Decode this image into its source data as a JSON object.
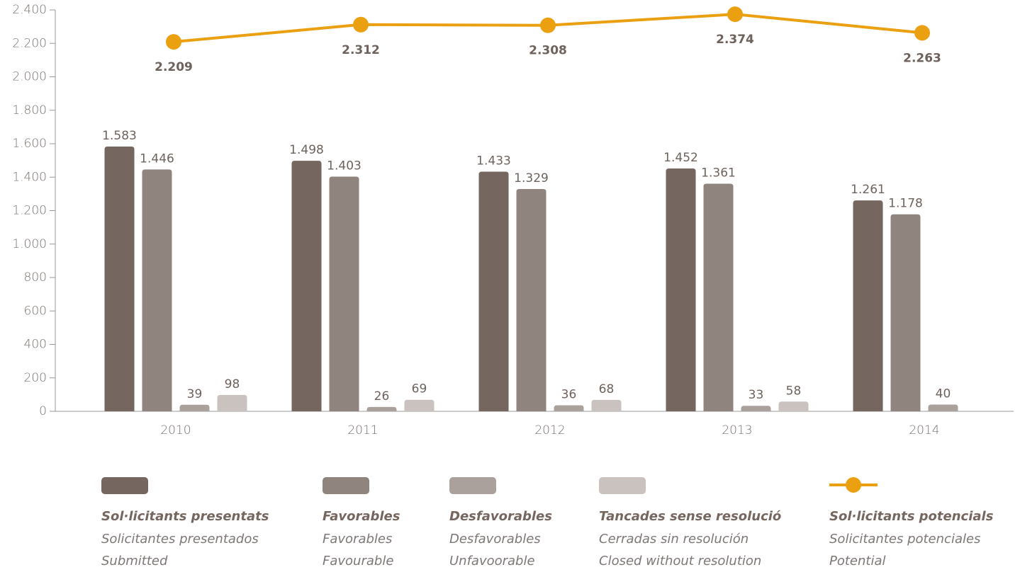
{
  "chart_data": {
    "type": "bar",
    "categories": [
      "2010",
      "2011",
      "2012",
      "2013",
      "2014"
    ],
    "ylim": [
      0,
      2400
    ],
    "yticks": [
      0,
      200,
      400,
      600,
      800,
      {
        "value": 1000,
        "label": "1.000"
      },
      {
        "value": 1200,
        "label": "1.200"
      },
      {
        "value": 1400,
        "label": "1.400"
      },
      {
        "value": 1600,
        "label": "1.600"
      },
      {
        "value": 1800,
        "label": "1.800"
      },
      {
        "value": 2000,
        "label": "2.000"
      },
      {
        "value": 2200,
        "label": "2.200"
      },
      {
        "value": 2400,
        "label": "2.400"
      }
    ],
    "series": [
      {
        "name": "Sol·licitants presentats",
        "translations": [
          "Solicitantes presentados",
          "Submitted"
        ],
        "color": "#75665f",
        "values": [
          1583,
          1498,
          1433,
          1452,
          1261
        ],
        "value_labels": [
          "1.583",
          "1.498",
          "1.433",
          "1.452",
          "1.261"
        ]
      },
      {
        "name": "Favorables",
        "translations": [
          "Favorables",
          "Favourable"
        ],
        "color": "#8f847e",
        "values": [
          1446,
          1403,
          1329,
          1361,
          1178
        ],
        "value_labels": [
          "1.446",
          "1.403",
          "1.329",
          "1.361",
          "1.178"
        ]
      },
      {
        "name": "Desfavorables",
        "translations": [
          "Desfavorables",
          "Unfavoorable"
        ],
        "color": "#aaa19d",
        "values": [
          39,
          26,
          36,
          33,
          40
        ]
      },
      {
        "name": "Tancades sense resolució",
        "translations": [
          "Cerradas sin resolución",
          "Closed without resolution"
        ],
        "color": "#c9c2bf",
        "values": [
          98,
          69,
          68,
          58,
          null
        ]
      },
      {
        "name": "Sol·licitants potencials",
        "translations": [
          "Solicitantes potenciales",
          "Potential"
        ],
        "color": "#eaa011",
        "type": "line",
        "values": [
          2209,
          2312,
          2308,
          2374,
          2263
        ],
        "value_labels": [
          "2.209",
          "2.312",
          "2.308",
          "2.374",
          "2.263"
        ]
      }
    ]
  }
}
